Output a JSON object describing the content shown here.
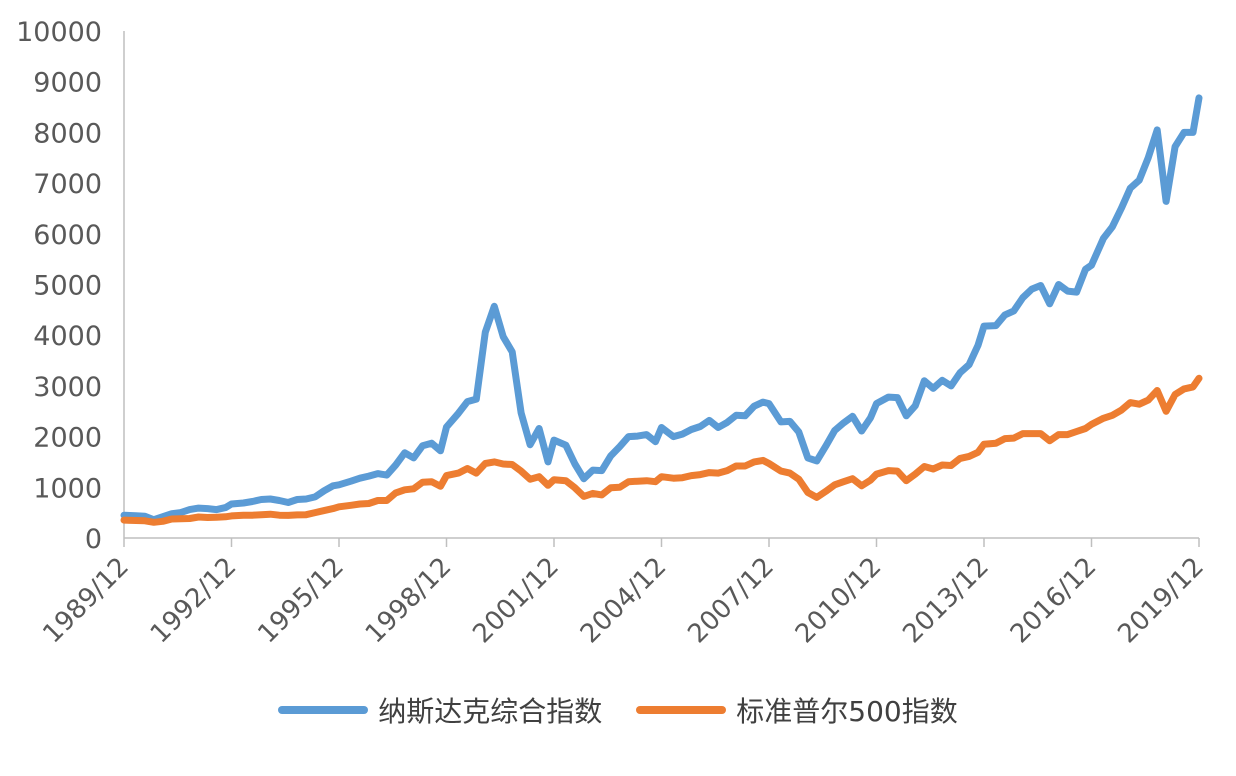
{
  "chart_data": {
    "type": "line",
    "title": "",
    "xlabel": "",
    "ylabel": "",
    "ylim": [
      0,
      10000
    ],
    "yticks": [
      "0",
      "1000",
      "2000",
      "3000",
      "4000",
      "5000",
      "6000",
      "7000",
      "8000",
      "9000",
      "10000"
    ],
    "xlim": [
      1989.917,
      2019.917
    ],
    "xticks": [
      {
        "label": "1989/12",
        "x": 1989.917
      },
      {
        "label": "1992/12",
        "x": 1992.917
      },
      {
        "label": "1995/12",
        "x": 1995.917
      },
      {
        "label": "1998/12",
        "x": 1998.917
      },
      {
        "label": "2001/12",
        "x": 2001.917
      },
      {
        "label": "2004/12",
        "x": 2004.917
      },
      {
        "label": "2007/12",
        "x": 2007.917
      },
      {
        "label": "2010/12",
        "x": 2010.917
      },
      {
        "label": "2013/12",
        "x": 2013.917
      },
      {
        "label": "2016/12",
        "x": 2016.917
      },
      {
        "label": "2019/12",
        "x": 2019.917
      }
    ],
    "grid": false,
    "legend_position": "bottom",
    "series": [
      {
        "name": "纳斯达克综合指数",
        "color": "#5B9BD5",
        "x": [
          1989.917,
          1990.25,
          1990.5,
          1990.75,
          1991.0,
          1991.25,
          1991.5,
          1991.75,
          1992.0,
          1992.25,
          1992.5,
          1992.75,
          1992.917,
          1993.25,
          1993.5,
          1993.75,
          1994.0,
          1994.25,
          1994.5,
          1994.75,
          1995.0,
          1995.25,
          1995.5,
          1995.75,
          1995.917,
          1996.25,
          1996.5,
          1996.75,
          1997.0,
          1997.25,
          1997.5,
          1997.75,
          1998.0,
          1998.25,
          1998.5,
          1998.75,
          1998.917,
          1999.25,
          1999.5,
          1999.75,
          2000.0,
          2000.25,
          2000.5,
          2000.75,
          2001.0,
          2001.25,
          2001.5,
          2001.75,
          2001.917,
          2002.25,
          2002.5,
          2002.75,
          2003.0,
          2003.25,
          2003.5,
          2003.75,
          2004.0,
          2004.25,
          2004.5,
          2004.75,
          2004.917,
          2005.25,
          2005.5,
          2005.75,
          2006.0,
          2006.25,
          2006.5,
          2006.75,
          2007.0,
          2007.25,
          2007.5,
          2007.75,
          2007.917,
          2008.25,
          2008.5,
          2008.75,
          2009.0,
          2009.25,
          2009.5,
          2009.75,
          2010.0,
          2010.25,
          2010.5,
          2010.75,
          2010.917,
          2011.25,
          2011.5,
          2011.75,
          2012.0,
          2012.25,
          2012.5,
          2012.75,
          2013.0,
          2013.25,
          2013.5,
          2013.75,
          2013.917,
          2014.25,
          2014.5,
          2014.75,
          2015.0,
          2015.25,
          2015.5,
          2015.75,
          2016.0,
          2016.25,
          2016.5,
          2016.75,
          2016.917,
          2017.25,
          2017.5,
          2017.75,
          2018.0,
          2018.25,
          2018.5,
          2018.75,
          2019.0,
          2019.25,
          2019.5,
          2019.75,
          2019.917
        ],
        "y": [
          450,
          440,
          430,
          360,
          420,
          480,
          500,
          560,
          590,
          580,
          560,
          600,
          670,
          690,
          720,
          760,
          770,
          740,
          700,
          760,
          770,
          810,
          930,
          1030,
          1050,
          1120,
          1180,
          1220,
          1270,
          1240,
          1440,
          1680,
          1580,
          1820,
          1870,
          1720,
          2190,
          2460,
          2690,
          2740,
          4060,
          4570,
          3970,
          3670,
          2470,
          1840,
          2160,
          1500,
          1930,
          1830,
          1460,
          1170,
          1340,
          1330,
          1620,
          1800,
          2000,
          2010,
          2040,
          1900,
          2180,
          2000,
          2050,
          2140,
          2200,
          2320,
          2180,
          2280,
          2420,
          2410,
          2600,
          2680,
          2650,
          2290,
          2300,
          2090,
          1580,
          1520,
          1810,
          2120,
          2270,
          2400,
          2110,
          2370,
          2650,
          2780,
          2770,
          2410,
          2610,
          3100,
          2950,
          3110,
          3000,
          3260,
          3420,
          3800,
          4180,
          4190,
          4400,
          4480,
          4740,
          4910,
          4980,
          4620,
          5000,
          4870,
          4850,
          5300,
          5380,
          5910,
          6140,
          6500,
          6900,
          7060,
          7500,
          8050,
          6640,
          7720,
          8000,
          8000,
          8680
        ]
      },
      {
        "name": "标准普尔500指数",
        "color": "#ED7D31",
        "x": [
          1989.917,
          1990.25,
          1990.5,
          1990.75,
          1991.0,
          1991.25,
          1991.5,
          1991.75,
          1992.0,
          1992.25,
          1992.5,
          1992.75,
          1992.917,
          1993.25,
          1993.5,
          1993.75,
          1994.0,
          1994.25,
          1994.5,
          1994.75,
          1995.0,
          1995.25,
          1995.5,
          1995.75,
          1995.917,
          1996.25,
          1996.5,
          1996.75,
          1997.0,
          1997.25,
          1997.5,
          1997.75,
          1998.0,
          1998.25,
          1998.5,
          1998.75,
          1998.917,
          1999.25,
          1999.5,
          1999.75,
          2000.0,
          2000.25,
          2000.5,
          2000.75,
          2001.0,
          2001.25,
          2001.5,
          2001.75,
          2001.917,
          2002.25,
          2002.5,
          2002.75,
          2003.0,
          2003.25,
          2003.5,
          2003.75,
          2004.0,
          2004.25,
          2004.5,
          2004.75,
          2004.917,
          2005.25,
          2005.5,
          2005.75,
          2006.0,
          2006.25,
          2006.5,
          2006.75,
          2007.0,
          2007.25,
          2007.5,
          2007.75,
          2007.917,
          2008.25,
          2008.5,
          2008.75,
          2009.0,
          2009.25,
          2009.5,
          2009.75,
          2010.0,
          2010.25,
          2010.5,
          2010.75,
          2010.917,
          2011.25,
          2011.5,
          2011.75,
          2012.0,
          2012.25,
          2012.5,
          2012.75,
          2013.0,
          2013.25,
          2013.5,
          2013.75,
          2013.917,
          2014.25,
          2014.5,
          2014.75,
          2015.0,
          2015.25,
          2015.5,
          2015.75,
          2016.0,
          2016.25,
          2016.5,
          2016.75,
          2016.917,
          2017.25,
          2017.5,
          2017.75,
          2018.0,
          2018.25,
          2018.5,
          2018.75,
          2019.0,
          2019.25,
          2019.5,
          2019.75,
          2019.917
        ],
        "y": [
          353,
          345,
          340,
          310,
          330,
          375,
          380,
          385,
          415,
          405,
          410,
          418,
          436,
          450,
          450,
          460,
          470,
          450,
          445,
          455,
          460,
          500,
          540,
          580,
          615,
          645,
          670,
          680,
          740,
          740,
          890,
          950,
          970,
          1100,
          1110,
          1020,
          1230,
          1280,
          1370,
          1280,
          1470,
          1500,
          1460,
          1450,
          1320,
          1160,
          1210,
          1040,
          1150,
          1130,
          990,
          820,
          880,
          850,
          990,
          1000,
          1110,
          1120,
          1130,
          1110,
          1210,
          1180,
          1190,
          1230,
          1250,
          1290,
          1280,
          1330,
          1420,
          1420,
          1500,
          1530,
          1470,
          1320,
          1280,
          1160,
          900,
          800,
          920,
          1050,
          1110,
          1170,
          1030,
          1140,
          1260,
          1330,
          1320,
          1130,
          1260,
          1410,
          1360,
          1440,
          1430,
          1570,
          1610,
          1690,
          1850,
          1870,
          1960,
          1970,
          2060,
          2060,
          2060,
          1920,
          2040,
          2040,
          2100,
          2160,
          2240,
          2360,
          2420,
          2520,
          2670,
          2640,
          2720,
          2910,
          2500,
          2830,
          2940,
          2980,
          3150
        ]
      }
    ]
  }
}
